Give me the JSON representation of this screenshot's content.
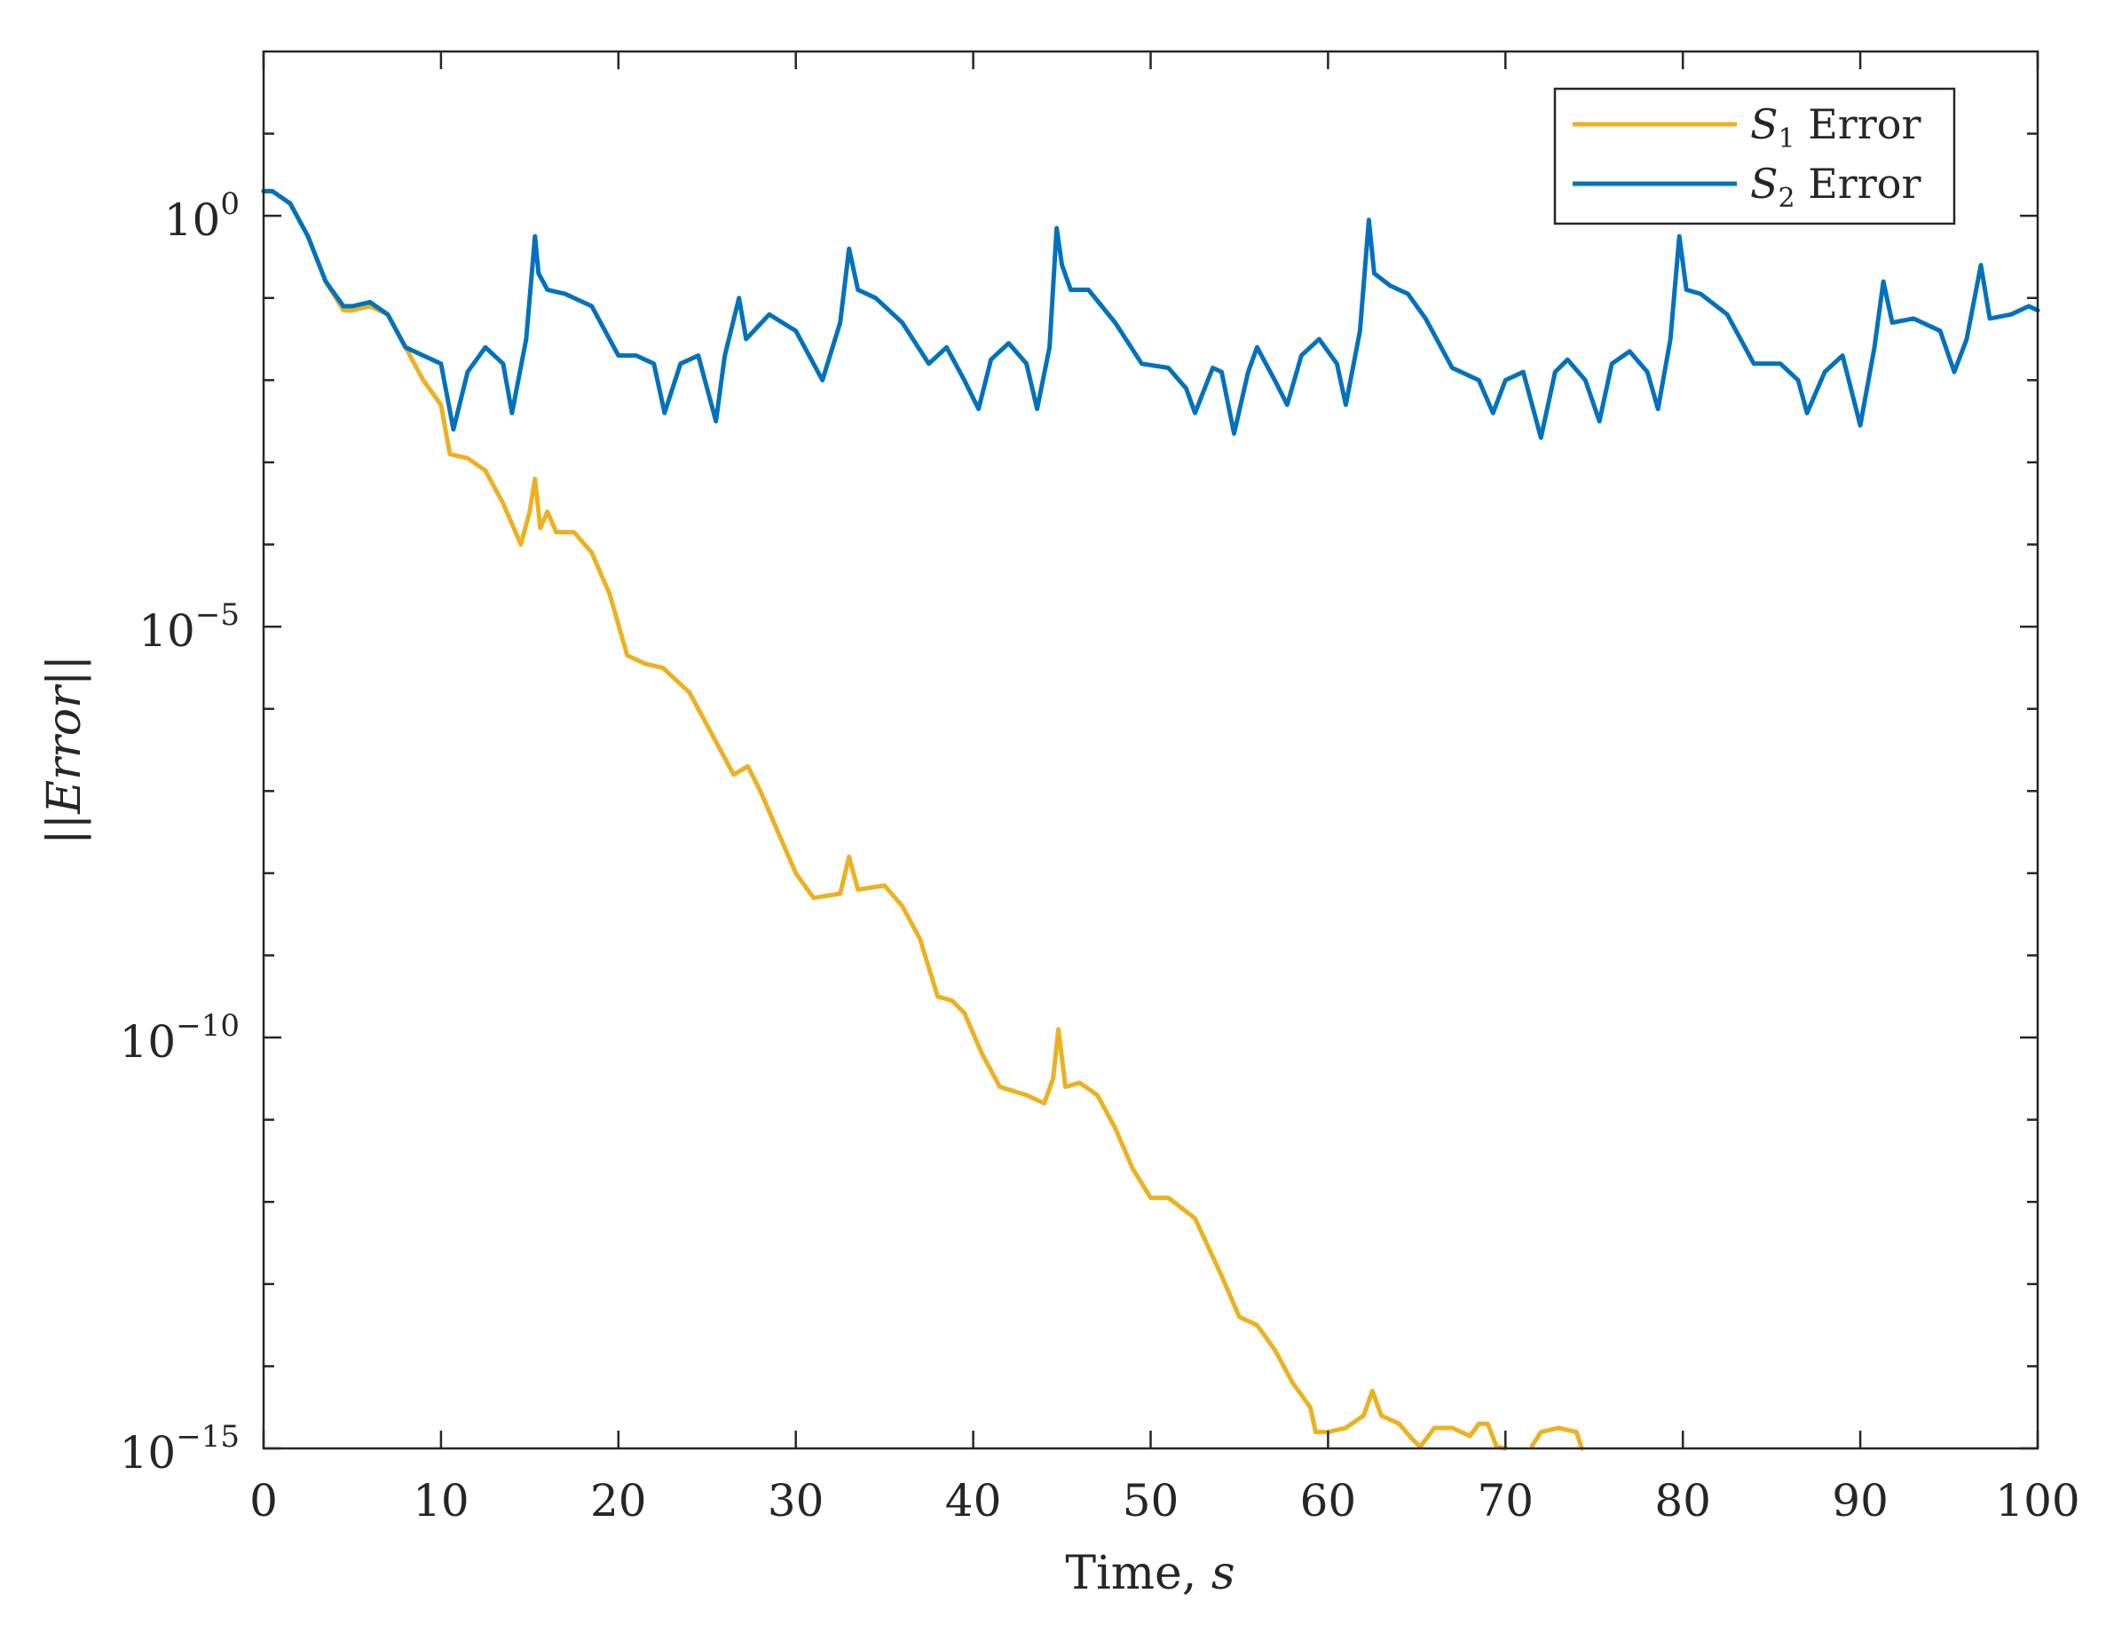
{
  "chart_data": {
    "type": "line",
    "yscale": "log",
    "title": "",
    "xlabel": "Time, s",
    "xlabel_parts": {
      "text": "Time, ",
      "var": "s"
    },
    "ylabel": "||Error||",
    "ylabel_parts": {
      "bars": "||",
      "var": "Error"
    },
    "xlim": [
      0,
      100
    ],
    "ylim": [
      1e-15,
      100.0
    ],
    "xticks": [
      0,
      10,
      20,
      30,
      40,
      50,
      60,
      70,
      80,
      90,
      100
    ],
    "xtick_labels": [
      "0",
      "10",
      "20",
      "30",
      "40",
      "50",
      "60",
      "70",
      "80",
      "90",
      "100"
    ],
    "yticks": [
      {
        "value": 1.0,
        "base": "10",
        "exp": "0"
      },
      {
        "value": 1e-05,
        "base": "10",
        "exp": "−5"
      },
      {
        "value": 1e-10,
        "base": "10",
        "exp": "−10"
      },
      {
        "value": 1e-15,
        "base": "10",
        "exp": "−15"
      }
    ],
    "minor_log_ticks": [
      -14,
      -13,
      -12,
      -11,
      -9,
      -8,
      -7,
      -6,
      -4,
      -3,
      -2,
      -1,
      1
    ],
    "legend_position": "top-right",
    "series": [
      {
        "name": "S1 Error",
        "label_var": "S",
        "label_sub": "1",
        "label_text": " Error",
        "color": "#EDB120",
        "points": [
          [
            0,
            0.3
          ],
          [
            0.5,
            0.3
          ],
          [
            1.5,
            0.15
          ],
          [
            2.5,
            -0.25
          ],
          [
            3.5,
            -0.8
          ],
          [
            4.5,
            -1.15
          ],
          [
            5.0,
            -1.15
          ],
          [
            6.0,
            -1.1
          ],
          [
            7.0,
            -1.2
          ],
          [
            8.0,
            -1.6
          ],
          [
            9.0,
            -2.0
          ],
          [
            10.0,
            -2.3
          ],
          [
            10.5,
            -2.9
          ],
          [
            11.5,
            -2.95
          ],
          [
            12.5,
            -3.1
          ],
          [
            13.5,
            -3.5
          ],
          [
            14.5,
            -4.0
          ],
          [
            15.0,
            -3.6
          ],
          [
            15.3,
            -3.2
          ],
          [
            15.6,
            -3.8
          ],
          [
            16.0,
            -3.6
          ],
          [
            16.5,
            -3.85
          ],
          [
            17.5,
            -3.85
          ],
          [
            18.5,
            -4.1
          ],
          [
            19.5,
            -4.6
          ],
          [
            20.5,
            -5.35
          ],
          [
            21.5,
            -5.45
          ],
          [
            22.5,
            -5.5
          ],
          [
            24.0,
            -5.8
          ],
          [
            25.5,
            -6.4
          ],
          [
            26.5,
            -6.8
          ],
          [
            27.3,
            -6.7
          ],
          [
            28.0,
            -7.0
          ],
          [
            29.0,
            -7.5
          ],
          [
            30.0,
            -8.0
          ],
          [
            31.0,
            -8.3
          ],
          [
            32.5,
            -8.25
          ],
          [
            33.0,
            -7.8
          ],
          [
            33.5,
            -8.2
          ],
          [
            35.0,
            -8.15
          ],
          [
            36.0,
            -8.4
          ],
          [
            37.0,
            -8.8
          ],
          [
            38.0,
            -9.5
          ],
          [
            38.8,
            -9.55
          ],
          [
            39.5,
            -9.7
          ],
          [
            40.5,
            -10.2
          ],
          [
            41.5,
            -10.6
          ],
          [
            43.0,
            -10.7
          ],
          [
            44.0,
            -10.8
          ],
          [
            44.5,
            -10.5
          ],
          [
            44.8,
            -9.9
          ],
          [
            45.2,
            -10.6
          ],
          [
            46.0,
            -10.55
          ],
          [
            47.0,
            -10.7
          ],
          [
            48.0,
            -11.1
          ],
          [
            49.0,
            -11.6
          ],
          [
            50.0,
            -11.95
          ],
          [
            51.0,
            -11.95
          ],
          [
            52.5,
            -12.2
          ],
          [
            54.0,
            -12.9
          ],
          [
            55.0,
            -13.4
          ],
          [
            56.0,
            -13.5
          ],
          [
            57.0,
            -13.8
          ],
          [
            58.0,
            -14.2
          ],
          [
            59.0,
            -14.5
          ],
          [
            59.3,
            -14.8
          ],
          [
            60.0,
            -14.8
          ],
          [
            61.0,
            -14.75
          ],
          [
            62.0,
            -14.6
          ],
          [
            62.5,
            -14.3
          ],
          [
            63.0,
            -14.6
          ],
          [
            64.0,
            -14.7
          ],
          [
            64.8,
            -14.9
          ],
          [
            65.2,
            -14.98
          ],
          [
            66.0,
            -14.75
          ],
          [
            67.0,
            -14.75
          ],
          [
            68.0,
            -14.85
          ],
          [
            68.5,
            -14.7
          ],
          [
            69.0,
            -14.7
          ],
          [
            69.5,
            -14.98
          ],
          [
            70.0,
            -15.0
          ],
          null,
          [
            71.5,
            -14.97
          ],
          [
            72.0,
            -14.8
          ],
          [
            73.0,
            -14.75
          ],
          [
            74.0,
            -14.8
          ],
          [
            74.3,
            -15.0
          ]
        ]
      },
      {
        "name": "S2 Error",
        "label_var": "S",
        "label_sub": "2",
        "label_text": " Error",
        "color": "#0072BD",
        "points": [
          [
            0,
            0.3
          ],
          [
            0.5,
            0.3
          ],
          [
            1.5,
            0.15
          ],
          [
            2.5,
            -0.25
          ],
          [
            3.5,
            -0.8
          ],
          [
            4.5,
            -1.1
          ],
          [
            5.0,
            -1.1
          ],
          [
            6.0,
            -1.05
          ],
          [
            7.0,
            -1.2
          ],
          [
            8.0,
            -1.6
          ],
          [
            9.0,
            -1.7
          ],
          [
            10.0,
            -1.8
          ],
          [
            10.7,
            -2.6
          ],
          [
            11.5,
            -1.9
          ],
          [
            12.5,
            -1.6
          ],
          [
            13.5,
            -1.8
          ],
          [
            14.0,
            -2.4
          ],
          [
            14.8,
            -1.5
          ],
          [
            15.3,
            -0.25
          ],
          [
            15.5,
            -0.7
          ],
          [
            16.0,
            -0.9
          ],
          [
            17.0,
            -0.95
          ],
          [
            18.5,
            -1.1
          ],
          [
            20.0,
            -1.7
          ],
          [
            21.0,
            -1.7
          ],
          [
            22.0,
            -1.8
          ],
          [
            22.6,
            -2.4
          ],
          [
            23.5,
            -1.8
          ],
          [
            24.5,
            -1.7
          ],
          [
            25.5,
            -2.5
          ],
          [
            26.0,
            -1.7
          ],
          [
            26.8,
            -1.0
          ],
          [
            27.2,
            -1.5
          ],
          [
            28.5,
            -1.2
          ],
          [
            30.0,
            -1.4
          ],
          [
            31.5,
            -2.0
          ],
          [
            32.5,
            -1.3
          ],
          [
            33.0,
            -0.4
          ],
          [
            33.5,
            -0.9
          ],
          [
            34.5,
            -1.0
          ],
          [
            36.0,
            -1.3
          ],
          [
            37.5,
            -1.8
          ],
          [
            38.5,
            -1.6
          ],
          [
            39.5,
            -2.0
          ],
          [
            40.3,
            -2.35
          ],
          [
            41.0,
            -1.75
          ],
          [
            42.0,
            -1.55
          ],
          [
            43.0,
            -1.8
          ],
          [
            43.6,
            -2.35
          ],
          [
            44.3,
            -1.6
          ],
          [
            44.7,
            -0.15
          ],
          [
            45.0,
            -0.6
          ],
          [
            45.5,
            -0.9
          ],
          [
            46.5,
            -0.9
          ],
          [
            48.0,
            -1.3
          ],
          [
            49.5,
            -1.8
          ],
          [
            51.0,
            -1.85
          ],
          [
            52.0,
            -2.1
          ],
          [
            52.5,
            -2.4
          ],
          [
            53.5,
            -1.85
          ],
          [
            54.0,
            -1.9
          ],
          [
            54.7,
            -2.65
          ],
          [
            55.5,
            -1.9
          ],
          [
            56.0,
            -1.6
          ],
          [
            57.0,
            -2.0
          ],
          [
            57.7,
            -2.3
          ],
          [
            58.5,
            -1.7
          ],
          [
            59.5,
            -1.5
          ],
          [
            60.5,
            -1.8
          ],
          [
            61.0,
            -2.3
          ],
          [
            61.8,
            -1.4
          ],
          [
            62.3,
            -0.05
          ],
          [
            62.6,
            -0.7
          ],
          [
            63.5,
            -0.85
          ],
          [
            64.5,
            -0.95
          ],
          [
            65.5,
            -1.25
          ],
          [
            67.0,
            -1.85
          ],
          [
            68.5,
            -2.0
          ],
          [
            69.3,
            -2.4
          ],
          [
            70.0,
            -2.0
          ],
          [
            71.0,
            -1.9
          ],
          [
            72.0,
            -2.7
          ],
          [
            72.8,
            -1.9
          ],
          [
            73.5,
            -1.75
          ],
          [
            74.5,
            -2.0
          ],
          [
            75.3,
            -2.5
          ],
          [
            76.0,
            -1.8
          ],
          [
            77.0,
            -1.65
          ],
          [
            78.0,
            -1.9
          ],
          [
            78.6,
            -2.35
          ],
          [
            79.3,
            -1.5
          ],
          [
            79.8,
            -0.25
          ],
          [
            80.2,
            -0.9
          ],
          [
            81.0,
            -0.95
          ],
          [
            82.5,
            -1.2
          ],
          [
            84.0,
            -1.8
          ],
          [
            85.5,
            -1.8
          ],
          [
            86.5,
            -2.0
          ],
          [
            87.0,
            -2.4
          ],
          [
            88.0,
            -1.9
          ],
          [
            89.0,
            -1.7
          ],
          [
            90.0,
            -2.55
          ],
          [
            90.8,
            -1.6
          ],
          [
            91.3,
            -0.8
          ],
          [
            91.8,
            -1.3
          ],
          [
            93.0,
            -1.25
          ],
          [
            94.5,
            -1.4
          ],
          [
            95.3,
            -1.9
          ],
          [
            96.0,
            -1.5
          ],
          [
            96.8,
            -0.6
          ],
          [
            97.3,
            -1.25
          ],
          [
            98.5,
            -1.2
          ],
          [
            99.5,
            -1.1
          ],
          [
            100,
            -1.15
          ]
        ]
      }
    ]
  }
}
